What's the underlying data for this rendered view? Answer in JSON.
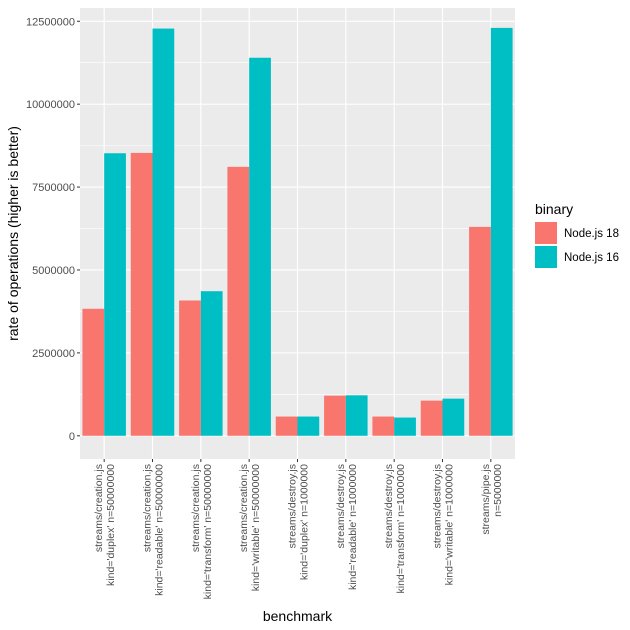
{
  "chart_data": {
    "type": "bar",
    "xlabel": "benchmark",
    "ylabel": "rate of operations (higher is better)",
    "ylim": [
      -700000,
      12900000
    ],
    "yticks": [
      0,
      2500000,
      5000000,
      7500000,
      10000000,
      12500000
    ],
    "ytick_labels": [
      "0",
      "2500000",
      "5000000",
      "7500000",
      "10000000",
      "12500000"
    ],
    "grid": true,
    "legend": {
      "title": "binary",
      "position": "right"
    },
    "categories": [
      [
        "streams/creation.js",
        "kind='duplex' n=50000000"
      ],
      [
        "streams/creation.js",
        "kind='readable' n=50000000"
      ],
      [
        "streams/creation.js",
        "kind='transform' n=50000000"
      ],
      [
        "streams/creation.js",
        "kind='writable' n=50000000"
      ],
      [
        "streams/destroy.js",
        "kind='duplex' n=1000000"
      ],
      [
        "streams/destroy.js",
        "kind='readable' n=1000000"
      ],
      [
        "streams/destroy.js",
        "kind='transform' n=1000000"
      ],
      [
        "streams/destroy.js",
        "kind='writable' n=1000000"
      ],
      [
        "streams/pipe.js",
        "n=5000000"
      ]
    ],
    "series": [
      {
        "name": "Node.js 18",
        "color": "#F8766D",
        "values": [
          3830000,
          8530000,
          4080000,
          8110000,
          580000,
          1210000,
          580000,
          1060000,
          6300000
        ]
      },
      {
        "name": "Node.js 16",
        "color": "#00BFC4",
        "values": [
          8520000,
          12280000,
          4360000,
          11400000,
          580000,
          1220000,
          550000,
          1120000,
          12300000
        ]
      }
    ]
  }
}
